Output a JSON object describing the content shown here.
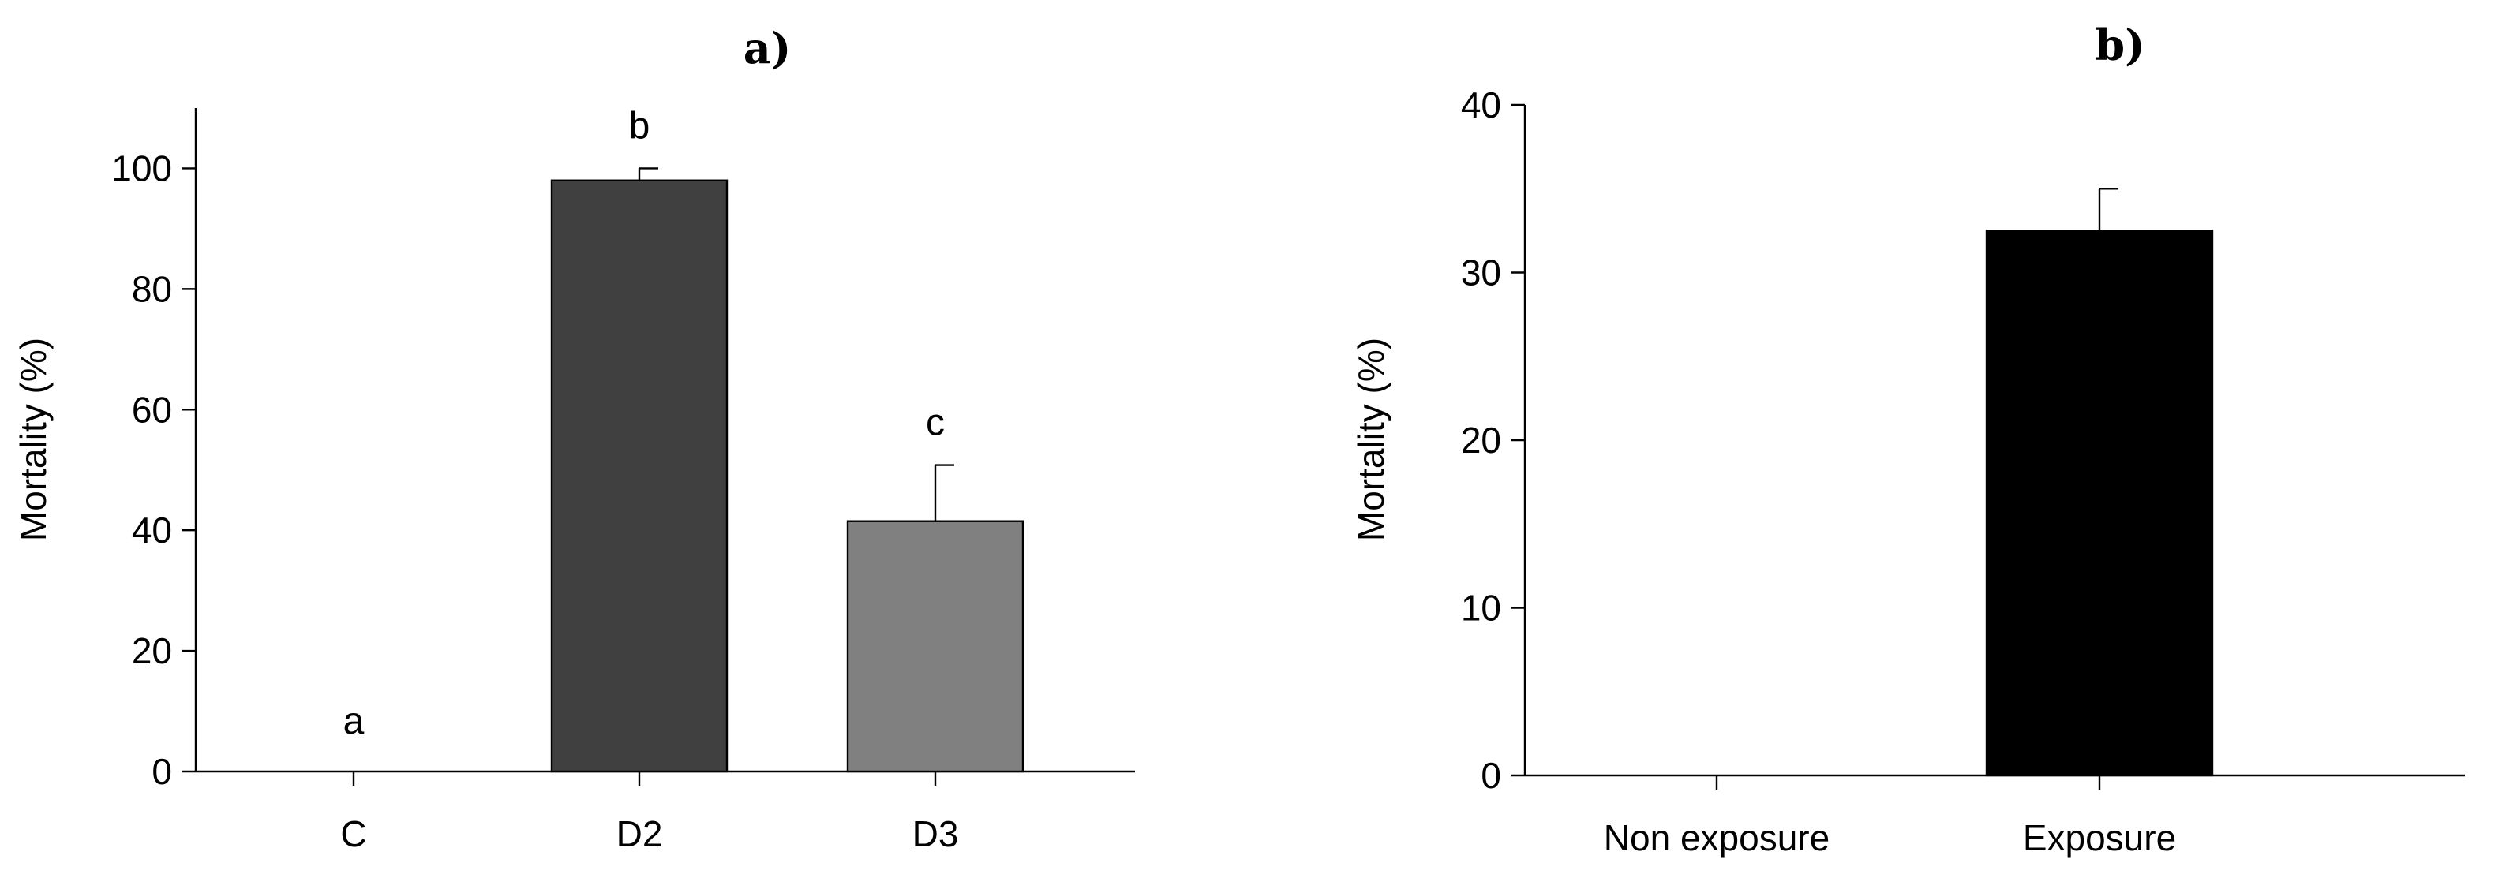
{
  "chart_data": [
    {
      "type": "bar",
      "panel_label": "a)",
      "title": "",
      "xlabel": "",
      "ylabel": "Mortality (%)",
      "categories": [
        "C",
        "D2",
        "D3"
      ],
      "values": [
        0,
        98,
        41.5
      ],
      "errors": [
        0,
        2,
        9.3
      ],
      "significance_labels": [
        "a",
        "b",
        "c"
      ],
      "bar_colors": [
        "#ffffff",
        "#404040",
        "#808080"
      ],
      "ylim": [
        0,
        110
      ],
      "yticks": [
        0,
        20,
        40,
        60,
        80,
        100
      ],
      "grid": false,
      "legend": "none"
    },
    {
      "type": "bar",
      "panel_label": "b)",
      "title": "",
      "xlabel": "",
      "ylabel": "Mortality (%)",
      "categories": [
        "Non exposure",
        "Exposure"
      ],
      "values": [
        0,
        32.5
      ],
      "errors": [
        0,
        2.5
      ],
      "bar_colors": [
        "#ffffff",
        "#000000"
      ],
      "ylim": [
        0,
        40
      ],
      "yticks": [
        0,
        10,
        20,
        30,
        40
      ],
      "grid": false,
      "legend": "none"
    }
  ]
}
